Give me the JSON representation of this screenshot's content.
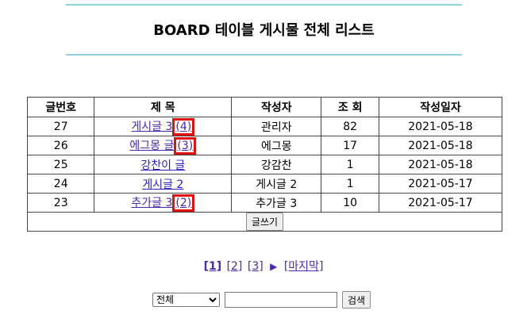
{
  "header": {
    "title": "BOARD 테이블 게시물 전체 리스트"
  },
  "table": {
    "columns": [
      "글번호",
      "제 목",
      "작성자",
      "조 회",
      "작성일자"
    ],
    "rows": [
      {
        "no": "27",
        "title": "게시글 3",
        "reply": "(4)",
        "writer": "관리자",
        "views": "82",
        "date": "2021-05-18"
      },
      {
        "no": "26",
        "title": "에그몽 글",
        "reply": "(3)",
        "writer": "에그몽",
        "views": "17",
        "date": "2021-05-18"
      },
      {
        "no": "25",
        "title": "강찬이 글",
        "reply": "",
        "writer": "강감찬",
        "views": "1",
        "date": "2021-05-18"
      },
      {
        "no": "24",
        "title": "게시글 2",
        "reply": "",
        "writer": "게시글 2",
        "views": "1",
        "date": "2021-05-17"
      },
      {
        "no": "23",
        "title": "추가글 3",
        "reply": "(2)",
        "writer": "추가글 3",
        "views": "10",
        "date": "2021-05-17"
      }
    ],
    "write_label": "글쓰기"
  },
  "pagination": {
    "pages": [
      "[1]",
      "[2]",
      "[3]"
    ],
    "next_icon": "▶",
    "last_label": "[마지막]"
  },
  "search": {
    "selected_option": "전체",
    "keyword_value": "",
    "button_label": "검색"
  },
  "colors": {
    "highlight_border": "#e01010",
    "rule": "#8fd3e2",
    "link": "#4a2aa8"
  }
}
